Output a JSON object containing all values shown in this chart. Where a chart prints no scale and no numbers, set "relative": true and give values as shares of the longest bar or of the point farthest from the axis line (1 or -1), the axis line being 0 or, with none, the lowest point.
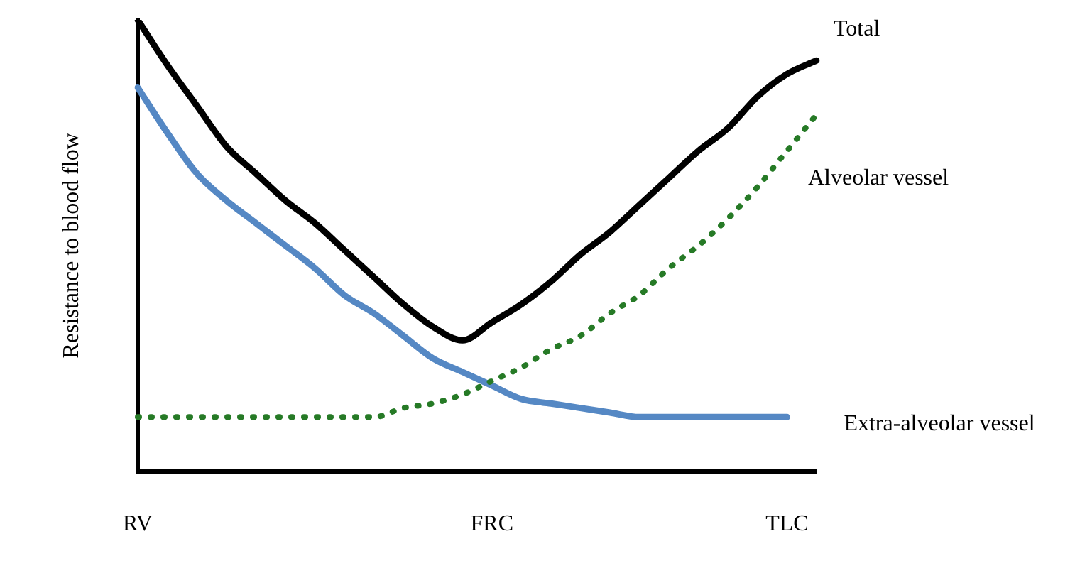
{
  "chart_data": {
    "type": "line",
    "relative": true,
    "ylabel": "Resistance to blood flow",
    "categories": [
      "RV",
      null,
      null,
      null,
      null,
      null,
      null,
      null,
      null,
      null,
      null,
      null,
      "FRC",
      null,
      null,
      null,
      null,
      null,
      null,
      null,
      null,
      null,
      "TLC",
      null
    ],
    "grid": false,
    "legend": false,
    "marker": "none",
    "series": [
      {
        "name": "Total",
        "color": "#000000",
        "line_style": "solid",
        "values": [
          1.0,
          0.9,
          0.81,
          0.72,
          0.66,
          0.6,
          0.55,
          0.49,
          0.43,
          0.37,
          0.32,
          0.29,
          0.33,
          0.37,
          0.42,
          0.48,
          0.53,
          0.59,
          0.65,
          0.71,
          0.76,
          0.83,
          0.88,
          0.91
        ]
      },
      {
        "name": "Alveolar vessel",
        "color": "#267a26",
        "line_style": "dotted",
        "values": [
          0.12,
          0.12,
          0.12,
          0.12,
          0.12,
          0.12,
          0.12,
          0.12,
          0.12,
          0.14,
          0.15,
          0.17,
          0.2,
          0.23,
          0.27,
          0.3,
          0.35,
          0.39,
          0.45,
          0.5,
          0.56,
          0.63,
          0.71,
          0.79
        ]
      },
      {
        "name": "Extra-alveolar vessel",
        "color": "#5588c4",
        "line_style": "solid",
        "values": [
          0.85,
          0.75,
          0.66,
          0.6,
          0.55,
          0.5,
          0.45,
          0.39,
          0.35,
          0.3,
          0.25,
          0.22,
          0.19,
          0.16,
          0.15,
          0.14,
          0.13,
          0.12,
          0.12,
          0.12,
          0.12,
          0.12,
          0.12,
          null
        ]
      }
    ]
  }
}
